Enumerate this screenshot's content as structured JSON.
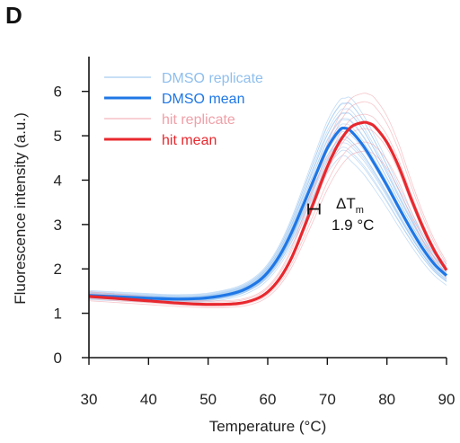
{
  "panel_label": "D",
  "colors": {
    "dmso_replicate": "#8fbfee",
    "dmso_mean": "#1f77e6",
    "hit_replicate": "#f0a0a8",
    "hit_mean": "#e8282e",
    "axis": "#111111"
  },
  "chart_data": {
    "type": "line",
    "xlabel": "Temperature (°C)",
    "ylabel": "Fluorescence intensity (a.u.)",
    "xlim": [
      30,
      90
    ],
    "ylim": [
      0,
      6.5
    ],
    "xticks": [
      30,
      40,
      50,
      60,
      70,
      80,
      90
    ],
    "yticks": [
      0,
      1,
      2,
      3,
      4,
      5,
      6
    ],
    "grid": false,
    "legend_position": "top-left",
    "series": [
      {
        "name": "DMSO mean",
        "style": "mean",
        "x": [
          30,
          35,
          40,
          45,
          50,
          55,
          58,
          60,
          62,
          64,
          66,
          68,
          70,
          72,
          73,
          74,
          76,
          78,
          80,
          82,
          84,
          86,
          88,
          90
        ],
        "values": [
          1.4,
          1.37,
          1.34,
          1.32,
          1.35,
          1.48,
          1.68,
          1.92,
          2.3,
          2.82,
          3.45,
          4.1,
          4.72,
          5.12,
          5.17,
          5.1,
          4.78,
          4.35,
          3.88,
          3.38,
          2.9,
          2.46,
          2.1,
          1.85
        ]
      },
      {
        "name": "hit mean",
        "style": "mean",
        "x": [
          30,
          35,
          40,
          45,
          50,
          55,
          58,
          60,
          62,
          64,
          66,
          68,
          70,
          72,
          74,
          76,
          77,
          78,
          80,
          82,
          84,
          86,
          88,
          90
        ],
        "values": [
          1.38,
          1.33,
          1.28,
          1.23,
          1.2,
          1.22,
          1.32,
          1.48,
          1.78,
          2.25,
          2.9,
          3.6,
          4.3,
          4.85,
          5.2,
          5.3,
          5.28,
          5.2,
          4.85,
          4.3,
          3.6,
          2.95,
          2.4,
          1.97
        ]
      }
    ],
    "replicates": {
      "dmso": {
        "x": [
          30,
          35,
          40,
          45,
          50,
          55,
          58,
          60,
          62,
          64,
          66,
          68,
          70,
          72,
          73,
          74,
          76,
          78,
          80,
          82,
          84,
          86,
          88,
          90
        ],
        "offsets": [
          -0.12,
          -0.08,
          -0.05,
          -0.02,
          0.02,
          0.05,
          0.08,
          0.12,
          0.15,
          0.2,
          -0.15,
          -0.1,
          0.25,
          0.3,
          -0.25,
          0.1,
          0.18,
          -0.18
        ],
        "scales": [
          0.88,
          0.92,
          0.95,
          0.98,
          1.0,
          1.02,
          1.05,
          1.08,
          1.1,
          1.13,
          0.9,
          0.94,
          1.12,
          1.15,
          0.86,
          1.04,
          1.07,
          0.97
        ]
      },
      "hit": {
        "offsets": [
          -0.1,
          0.05,
          0.15,
          -0.2,
          0.22,
          -0.05
        ],
        "scales": [
          0.9,
          1.04,
          1.1,
          0.86,
          1.14,
          0.97
        ]
      }
    },
    "annotations": {
      "delta_symbol": "ΔT",
      "delta_subscript": "m",
      "delta_value": "1.9 °C",
      "bracket_x": [
        66.8,
        68.7
      ],
      "bracket_y": 3.35
    }
  },
  "legend": [
    {
      "label": "DMSO replicate",
      "key": "dmso_replicate",
      "width": 1
    },
    {
      "label": "DMSO mean",
      "key": "dmso_mean",
      "width": 3
    },
    {
      "label": "hit replicate",
      "key": "hit_replicate",
      "width": 1
    },
    {
      "label": "hit mean",
      "key": "hit_mean",
      "width": 3
    }
  ]
}
